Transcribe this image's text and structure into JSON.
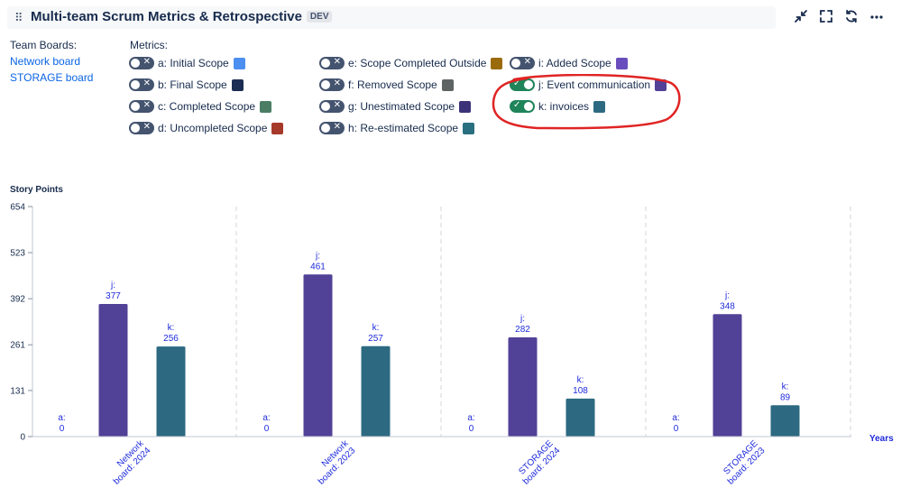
{
  "header": {
    "title": "Multi-team Scrum Metrics & Retrospective",
    "badge": "DEV",
    "icons": [
      "collapse-icon",
      "fullscreen-icon",
      "refresh-icon",
      "more-icon"
    ]
  },
  "boards": {
    "title": "Team Boards:",
    "items": [
      "Network board",
      "STORAGE board"
    ]
  },
  "metrics": {
    "title": "Metrics:",
    "items": [
      {
        "label": "a: Initial Scope",
        "on": false,
        "color": "#4c8ff0"
      },
      {
        "label": "b: Final Scope",
        "on": false,
        "color": "#1b2d52"
      },
      {
        "label": "c: Completed Scope",
        "on": false,
        "color": "#4a7d64"
      },
      {
        "label": "d: Uncompleted Scope",
        "on": false,
        "color": "#a7392b"
      },
      {
        "label": "e: Scope Completed Outside",
        "on": false,
        "color": "#9a6b0c"
      },
      {
        "label": "f: Removed Scope",
        "on": false,
        "color": "#5d6463"
      },
      {
        "label": "g: Unestimated Scope",
        "on": false,
        "color": "#3c3278"
      },
      {
        "label": "h: Re-estimated Scope",
        "on": false,
        "color": "#2a6f7f"
      },
      {
        "label": "i: Added Scope",
        "on": false,
        "color": "#6a4dbd"
      },
      {
        "label": "j: Event communication",
        "on": true,
        "color": "#514197"
      },
      {
        "label": "k: invoices",
        "on": true,
        "color": "#2d6a82"
      }
    ]
  },
  "annotation": {
    "color": "#e02424"
  },
  "chart_data": {
    "type": "bar",
    "ylabel": "Story Points",
    "xlabel": "Years",
    "ylim": [
      0,
      654
    ],
    "yticks": [
      0,
      131,
      261,
      392,
      523,
      654
    ],
    "categories": [
      "Network board: 2024",
      "Network board: 2023",
      "STORAGE board: 2024",
      "STORAGE board: 2023"
    ],
    "series": [
      {
        "key": "a",
        "values": [
          0,
          0,
          0,
          0
        ],
        "color": "#4c8ff0"
      },
      {
        "key": "j",
        "values": [
          377,
          461,
          282,
          348
        ],
        "color": "#514197"
      },
      {
        "key": "k",
        "values": [
          256,
          257,
          108,
          89
        ],
        "color": "#2d6a82"
      }
    ],
    "grid": "vertical dashed separators",
    "label_color": "#1f2bdb"
  }
}
